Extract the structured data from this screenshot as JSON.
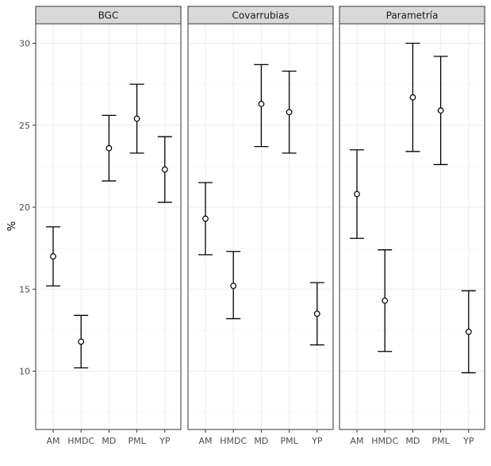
{
  "chart_data": {
    "type": "errorbar",
    "ylabel": "%",
    "xlabel": "",
    "ylim": [
      6.5,
      31.2
    ],
    "yticks": [
      10,
      15,
      20,
      25,
      30
    ],
    "categories": [
      "AM",
      "HMDC",
      "MD",
      "PML",
      "YP"
    ],
    "facets": [
      {
        "name": "BGC",
        "points": [
          {
            "category": "AM",
            "mean": 17.0,
            "lower": 15.2,
            "upper": 18.8
          },
          {
            "category": "HMDC",
            "mean": 11.8,
            "lower": 10.2,
            "upper": 13.4
          },
          {
            "category": "MD",
            "mean": 23.6,
            "lower": 21.6,
            "upper": 25.6
          },
          {
            "category": "PML",
            "mean": 25.4,
            "lower": 23.3,
            "upper": 27.5
          },
          {
            "category": "YP",
            "mean": 22.3,
            "lower": 20.3,
            "upper": 24.3
          }
        ]
      },
      {
        "name": "Covarrubias",
        "points": [
          {
            "category": "AM",
            "mean": 19.3,
            "lower": 17.1,
            "upper": 21.5
          },
          {
            "category": "HMDC",
            "mean": 15.2,
            "lower": 13.2,
            "upper": 17.3
          },
          {
            "category": "MD",
            "mean": 26.3,
            "lower": 23.7,
            "upper": 28.7
          },
          {
            "category": "PML",
            "mean": 25.8,
            "lower": 23.3,
            "upper": 28.3
          },
          {
            "category": "YP",
            "mean": 13.5,
            "lower": 11.6,
            "upper": 15.4
          }
        ]
      },
      {
        "name": "Parametría",
        "points": [
          {
            "category": "AM",
            "mean": 20.8,
            "lower": 18.1,
            "upper": 23.5
          },
          {
            "category": "HMDC",
            "mean": 14.3,
            "lower": 11.2,
            "upper": 17.4
          },
          {
            "category": "MD",
            "mean": 26.7,
            "lower": 23.4,
            "upper": 30.0
          },
          {
            "category": "PML",
            "mean": 25.9,
            "lower": 22.6,
            "upper": 29.2
          },
          {
            "category": "YP",
            "mean": 12.4,
            "lower": 9.9,
            "upper": 14.9
          }
        ]
      }
    ],
    "colors": {
      "strip": "#d9d9d9",
      "grid": "#ebebeb",
      "border": "#333333",
      "point_fill": "#ffffff",
      "line": "#000000"
    }
  }
}
